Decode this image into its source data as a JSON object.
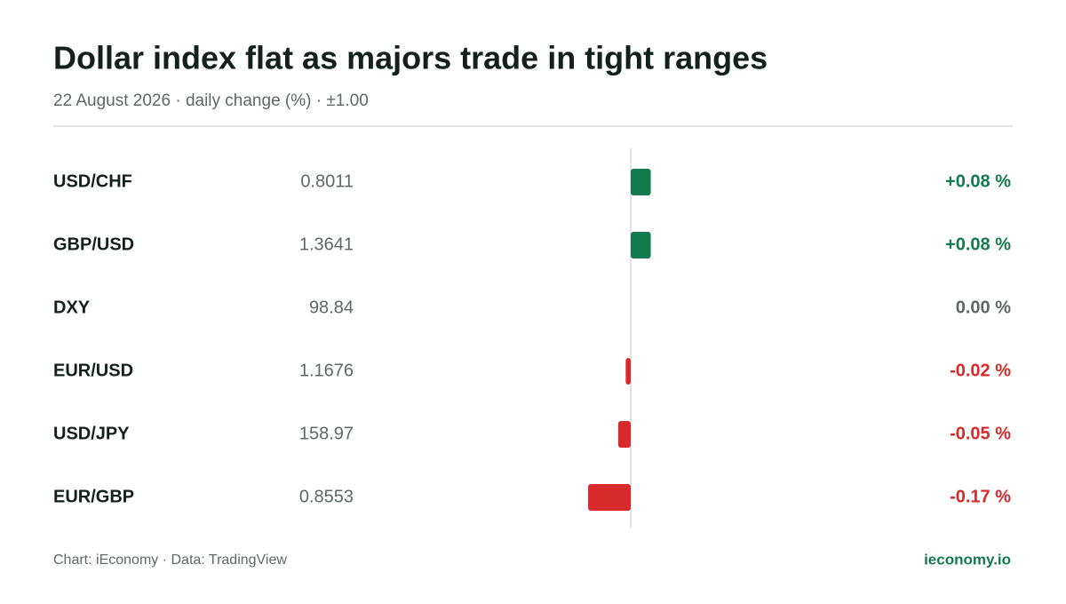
{
  "chart_data": {
    "type": "bar",
    "title": "Dollar index flat as majors trade in tight ranges",
    "subtitle": "22 August 2026 · daily change (%) · ±1.00",
    "categories": [
      "USD/CHF",
      "GBP/USD",
      "DXY",
      "EUR/USD",
      "USD/JPY",
      "EUR/GBP"
    ],
    "prices": [
      0.8011,
      1.3641,
      98.84,
      1.1676,
      158.97,
      0.8553
    ],
    "values": [
      0.08,
      0.08,
      0,
      -0.02,
      -0.05,
      -0.17
    ],
    "value_labels": [
      "+0.08 %",
      "+0.08 %",
      "0.00 %",
      "-0.02 %",
      "-0.05 %",
      "-0.17 %"
    ],
    "xlim": [
      -1,
      1
    ],
    "colors": {
      "positive": "#137a4f",
      "negative": "#d82a2a",
      "zero": "#5f6866"
    }
  },
  "footer": {
    "source": "Chart: iEconomy · Data: TradingView",
    "brand": "ieconomy.io"
  }
}
